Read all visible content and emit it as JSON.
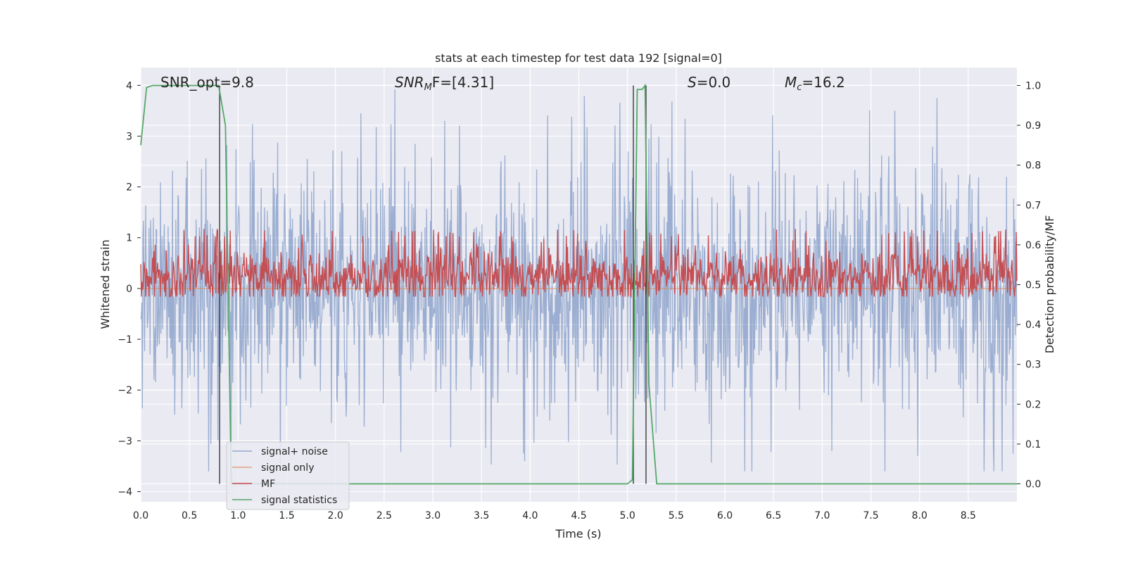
{
  "chart_data": {
    "type": "line",
    "title": "stats at each timestep for test data 192 [signal=0]",
    "xlabel": "Time (s)",
    "ylabel_left": "Whitened strain",
    "ylabel_right": "Detection probability/MF",
    "xlim": [
      0.0,
      9.0
    ],
    "ylim_left": [
      -4.2,
      4.35
    ],
    "ylim_right": [
      -0.045,
      1.045
    ],
    "x_ticks": [
      "0.0",
      "0.5",
      "1.0",
      "1.5",
      "2.0",
      "2.5",
      "3.0",
      "3.5",
      "4.0",
      "4.5",
      "5.0",
      "5.5",
      "6.0",
      "6.5",
      "7.0",
      "7.5",
      "8.0",
      "8.5"
    ],
    "y_ticks_left": [
      "4",
      "3",
      "2",
      "1",
      "0",
      "−1",
      "−2",
      "−3",
      "−4"
    ],
    "y_ticks_right": [
      "1.0",
      "0.9",
      "0.8",
      "0.7",
      "0.6",
      "0.5",
      "0.4",
      "0.3",
      "0.2",
      "0.1",
      "0.0"
    ],
    "grid": true,
    "legend_position": "lower-left",
    "annotations": [
      {
        "key": "snr_opt",
        "text": "SNR_opt=9.8"
      },
      {
        "key": "snr_mf",
        "prefix": "SNR",
        "sub": "M",
        "suffix": "F=[4.31]"
      },
      {
        "key": "s_val",
        "prefix": "S",
        "suffix": "=0.0"
      },
      {
        "key": "mc",
        "prefix": "M",
        "sub": "c",
        "suffix": "=16.2"
      }
    ],
    "series": [
      {
        "name": "signal+ noise",
        "color": "#4c72b0",
        "axis": "left",
        "note": "noise trace, amplitude roughly within -3.5 to 4"
      },
      {
        "name": "signal only",
        "color": "#dd8452",
        "axis": "left",
        "y": 0.0
      },
      {
        "name": "MF",
        "color": "#c44e52",
        "axis": "right",
        "range": [
          0.47,
          0.64
        ]
      },
      {
        "name": "signal statistics",
        "color": "#55a868",
        "axis": "right",
        "x": [
          0.0,
          0.06,
          0.12,
          0.8,
          0.87,
          0.93,
          5.0,
          5.05,
          5.1,
          5.15,
          5.18,
          5.22,
          5.3,
          9.0
        ],
        "y": [
          0.85,
          0.995,
          1.0,
          1.0,
          0.9,
          0.0,
          0.0,
          0.01,
          0.99,
          0.99,
          1.0,
          0.25,
          0.0,
          0.0
        ]
      }
    ],
    "vertical_lines_x": [
      0.81,
      5.06,
      5.19
    ]
  }
}
